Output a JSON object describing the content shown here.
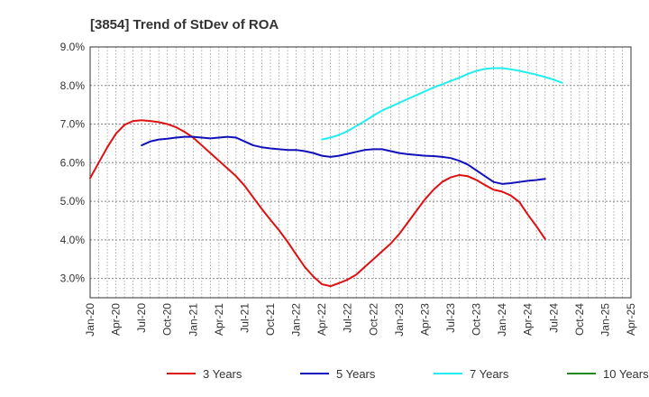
{
  "chart_data": {
    "type": "line",
    "title": "[3854]  Trend of StDev of ROA",
    "xlabel": "",
    "ylabel": "",
    "y_tick_labels": [
      "3.0%",
      "4.0%",
      "5.0%",
      "6.0%",
      "7.0%",
      "8.0%",
      "9.0%"
    ],
    "y_ticks": [
      3,
      4,
      5,
      6,
      7,
      8,
      9
    ],
    "ylim": [
      2.5,
      9.0
    ],
    "x_tick_labels": [
      "Jan-20",
      "Apr-20",
      "Jul-20",
      "Oct-20",
      "Jan-21",
      "Apr-21",
      "Jul-21",
      "Oct-21",
      "Jan-22",
      "Apr-22",
      "Jul-22",
      "Oct-22",
      "Jan-23",
      "Apr-23",
      "Jul-23",
      "Oct-23",
      "Jan-24",
      "Apr-24",
      "Jul-24",
      "Oct-24",
      "Jan-25",
      "Apr-25"
    ],
    "x_index_range": [
      0,
      63
    ],
    "grid": true,
    "legend_position": "bottom",
    "series": [
      {
        "name": "3 Years",
        "color": "#dd1111",
        "points": [
          [
            0,
            5.6
          ],
          [
            1,
            6.0
          ],
          [
            2,
            6.4
          ],
          [
            3,
            6.75
          ],
          [
            4,
            6.98
          ],
          [
            5,
            7.08
          ],
          [
            6,
            7.1
          ],
          [
            7,
            7.08
          ],
          [
            8,
            7.05
          ],
          [
            9,
            7.0
          ],
          [
            10,
            6.92
          ],
          [
            11,
            6.8
          ],
          [
            12,
            6.65
          ],
          [
            13,
            6.45
          ],
          [
            14,
            6.25
          ],
          [
            15,
            6.05
          ],
          [
            16,
            5.85
          ],
          [
            17,
            5.65
          ],
          [
            18,
            5.4
          ],
          [
            19,
            5.1
          ],
          [
            20,
            4.8
          ],
          [
            21,
            4.52
          ],
          [
            22,
            4.25
          ],
          [
            23,
            3.95
          ],
          [
            24,
            3.62
          ],
          [
            25,
            3.3
          ],
          [
            26,
            3.05
          ],
          [
            27,
            2.85
          ],
          [
            28,
            2.8
          ],
          [
            29,
            2.88
          ],
          [
            30,
            2.97
          ],
          [
            31,
            3.1
          ],
          [
            32,
            3.3
          ],
          [
            33,
            3.5
          ],
          [
            34,
            3.7
          ],
          [
            35,
            3.9
          ],
          [
            36,
            4.15
          ],
          [
            37,
            4.45
          ],
          [
            38,
            4.75
          ],
          [
            39,
            5.05
          ],
          [
            40,
            5.3
          ],
          [
            41,
            5.5
          ],
          [
            42,
            5.62
          ],
          [
            43,
            5.68
          ],
          [
            44,
            5.65
          ],
          [
            45,
            5.55
          ],
          [
            46,
            5.42
          ],
          [
            47,
            5.3
          ],
          [
            48,
            5.25
          ],
          [
            49,
            5.15
          ],
          [
            50,
            4.98
          ],
          [
            51,
            4.65
          ],
          [
            52,
            4.35
          ],
          [
            53,
            4.02
          ]
        ]
      },
      {
        "name": "5 Years",
        "color": "#1111bb",
        "points": [
          [
            6,
            6.45
          ],
          [
            7,
            6.55
          ],
          [
            8,
            6.6
          ],
          [
            9,
            6.62
          ],
          [
            10,
            6.65
          ],
          [
            11,
            6.67
          ],
          [
            12,
            6.67
          ],
          [
            13,
            6.65
          ],
          [
            14,
            6.63
          ],
          [
            15,
            6.65
          ],
          [
            16,
            6.67
          ],
          [
            17,
            6.65
          ],
          [
            18,
            6.55
          ],
          [
            19,
            6.45
          ],
          [
            20,
            6.4
          ],
          [
            21,
            6.37
          ],
          [
            22,
            6.35
          ],
          [
            23,
            6.33
          ],
          [
            24,
            6.33
          ],
          [
            25,
            6.3
          ],
          [
            26,
            6.25
          ],
          [
            27,
            6.18
          ],
          [
            28,
            6.15
          ],
          [
            29,
            6.18
          ],
          [
            30,
            6.23
          ],
          [
            31,
            6.28
          ],
          [
            32,
            6.33
          ],
          [
            33,
            6.35
          ],
          [
            34,
            6.35
          ],
          [
            35,
            6.3
          ],
          [
            36,
            6.25
          ],
          [
            37,
            6.22
          ],
          [
            38,
            6.2
          ],
          [
            39,
            6.18
          ],
          [
            40,
            6.17
          ],
          [
            41,
            6.15
          ],
          [
            42,
            6.12
          ],
          [
            43,
            6.05
          ],
          [
            44,
            5.95
          ],
          [
            45,
            5.8
          ],
          [
            46,
            5.65
          ],
          [
            47,
            5.5
          ],
          [
            48,
            5.45
          ],
          [
            49,
            5.47
          ],
          [
            50,
            5.5
          ],
          [
            51,
            5.53
          ],
          [
            52,
            5.55
          ],
          [
            53,
            5.58
          ]
        ]
      },
      {
        "name": "7 Years",
        "color": "#22eeee",
        "points": [
          [
            27,
            6.6
          ],
          [
            28,
            6.65
          ],
          [
            29,
            6.72
          ],
          [
            30,
            6.82
          ],
          [
            31,
            6.95
          ],
          [
            32,
            7.08
          ],
          [
            33,
            7.22
          ],
          [
            34,
            7.35
          ],
          [
            35,
            7.45
          ],
          [
            36,
            7.55
          ],
          [
            37,
            7.65
          ],
          [
            38,
            7.75
          ],
          [
            39,
            7.85
          ],
          [
            40,
            7.95
          ],
          [
            41,
            8.03
          ],
          [
            42,
            8.12
          ],
          [
            43,
            8.2
          ],
          [
            44,
            8.3
          ],
          [
            45,
            8.38
          ],
          [
            46,
            8.43
          ],
          [
            47,
            8.45
          ],
          [
            48,
            8.45
          ],
          [
            49,
            8.42
          ],
          [
            50,
            8.38
          ],
          [
            51,
            8.33
          ],
          [
            52,
            8.28
          ],
          [
            53,
            8.22
          ],
          [
            54,
            8.15
          ],
          [
            55,
            8.07
          ]
        ]
      },
      {
        "name": "10 Years",
        "color": "#228822",
        "points": []
      }
    ]
  }
}
